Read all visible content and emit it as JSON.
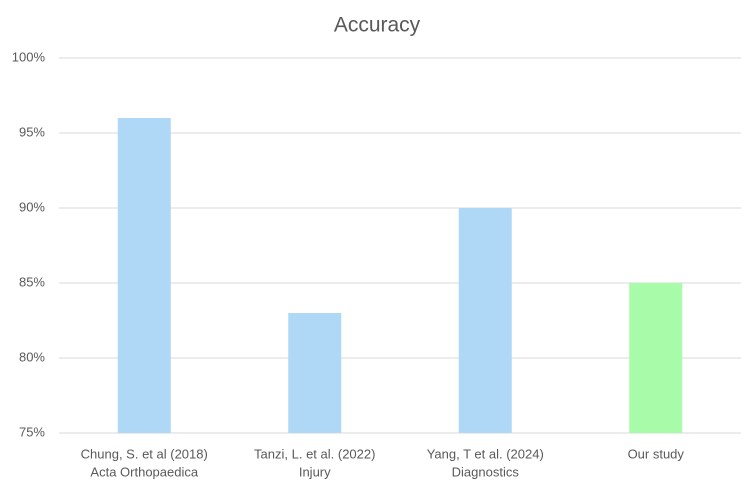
{
  "chart_data": {
    "type": "bar",
    "title": "Accuracy",
    "categories": [
      [
        "Chung, S. et al (2018)",
        "Acta Orthopaedica"
      ],
      [
        "Tanzi, L. et al. (2022)",
        "Injury"
      ],
      [
        "Yang, T et al. (2024)",
        "Diagnostics"
      ],
      [
        "Our study"
      ]
    ],
    "values": [
      96,
      83,
      90,
      85
    ],
    "colors": [
      "#afd8f7",
      "#afd8f7",
      "#afd8f7",
      "#a8fba8"
    ],
    "ylim": [
      75,
      100
    ],
    "yticks": [
      {
        "value": 75,
        "label": "75%"
      },
      {
        "value": 80,
        "label": "80%"
      },
      {
        "value": 85,
        "label": "85%"
      },
      {
        "value": 90,
        "label": "90%"
      },
      {
        "value": 95,
        "label": "95%"
      },
      {
        "value": 100,
        "label": "100%"
      }
    ],
    "grid": true
  }
}
